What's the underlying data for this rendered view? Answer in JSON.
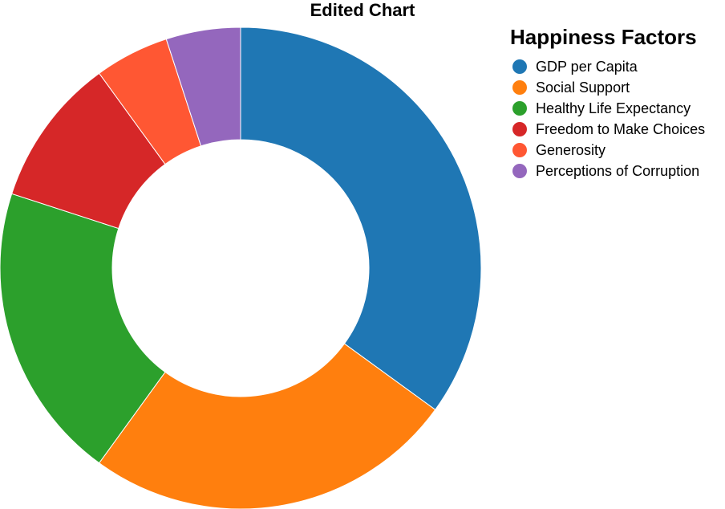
{
  "chart_data": {
    "type": "pie",
    "title": "Edited Chart",
    "categories": [
      "GDP per Capita",
      "Social Support",
      "Healthy Life Expectancy",
      "Freedom to Make Choices",
      "Generosity",
      "Perceptions of Corruption"
    ],
    "values": [
      35,
      25,
      20,
      10,
      5,
      5
    ],
    "colors": [
      "#1f77b4",
      "#ff7f0e",
      "#2ca02c",
      "#d62728",
      "#ff5733",
      "#9467bd"
    ],
    "donut": true,
    "legend": {
      "title": "Happiness Factors",
      "placement": "top-right"
    }
  }
}
